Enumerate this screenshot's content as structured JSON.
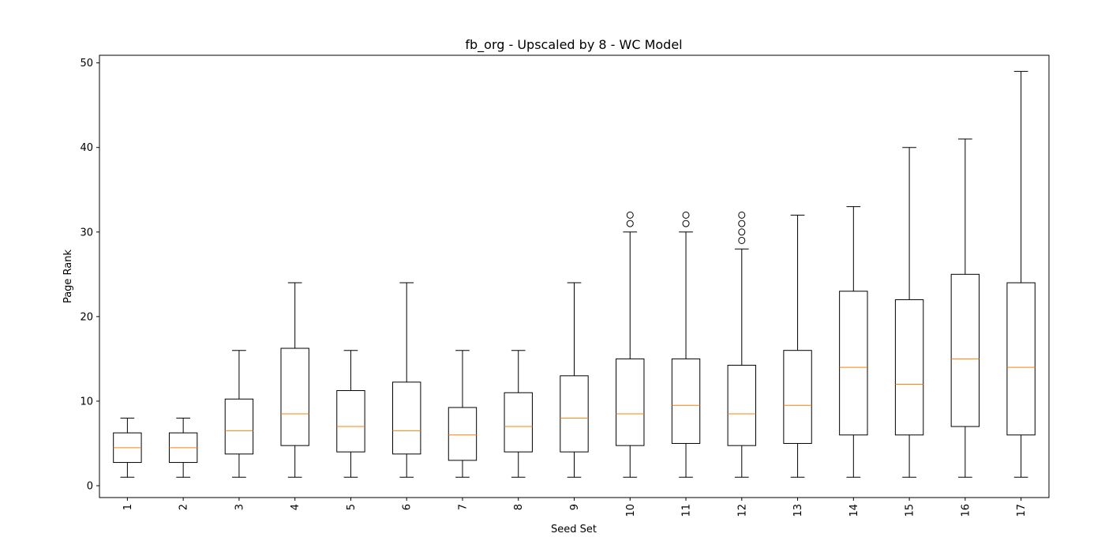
{
  "chart_data": {
    "type": "boxplot",
    "title": "fb_org - Upscaled by 8 - WC Model",
    "xlabel": "Seed Set",
    "ylabel": "Page Rank",
    "categories": [
      "1",
      "2",
      "3",
      "4",
      "5",
      "6",
      "7",
      "8",
      "9",
      "10",
      "11",
      "12",
      "13",
      "14",
      "15",
      "16",
      "17"
    ],
    "ylim": [
      -1.4,
      50.9
    ],
    "yticks": [
      0,
      10,
      20,
      30,
      40,
      50
    ],
    "grid": false,
    "colors": {
      "box": "#000000",
      "median": "#ff7f0e",
      "frame": "#000000"
    },
    "boxes": [
      {
        "label": "1",
        "whislo": 1,
        "q1": 2.75,
        "med": 4.5,
        "q3": 6.25,
        "whishi": 8,
        "fliers": []
      },
      {
        "label": "2",
        "whislo": 1,
        "q1": 2.75,
        "med": 4.5,
        "q3": 6.25,
        "whishi": 8,
        "fliers": []
      },
      {
        "label": "3",
        "whislo": 1,
        "q1": 3.75,
        "med": 6.5,
        "q3": 10.25,
        "whishi": 16,
        "fliers": []
      },
      {
        "label": "4",
        "whislo": 1,
        "q1": 4.75,
        "med": 8.5,
        "q3": 16.25,
        "whishi": 24,
        "fliers": []
      },
      {
        "label": "5",
        "whislo": 1,
        "q1": 4,
        "med": 7,
        "q3": 11.25,
        "whishi": 16,
        "fliers": []
      },
      {
        "label": "6",
        "whislo": 1,
        "q1": 3.75,
        "med": 6.5,
        "q3": 12.25,
        "whishi": 24,
        "fliers": []
      },
      {
        "label": "7",
        "whislo": 1,
        "q1": 3,
        "med": 6,
        "q3": 9.25,
        "whishi": 16,
        "fliers": []
      },
      {
        "label": "8",
        "whislo": 1,
        "q1": 4,
        "med": 7,
        "q3": 11,
        "whishi": 16,
        "fliers": []
      },
      {
        "label": "9",
        "whislo": 1,
        "q1": 4,
        "med": 8,
        "q3": 13,
        "whishi": 24,
        "fliers": []
      },
      {
        "label": "10",
        "whislo": 1,
        "q1": 4.75,
        "med": 8.5,
        "q3": 15,
        "whishi": 30,
        "fliers": [
          31,
          32
        ]
      },
      {
        "label": "11",
        "whislo": 1,
        "q1": 5,
        "med": 9.5,
        "q3": 15,
        "whishi": 30,
        "fliers": [
          31,
          32
        ]
      },
      {
        "label": "12",
        "whislo": 1,
        "q1": 4.75,
        "med": 8.5,
        "q3": 14.25,
        "whishi": 28,
        "fliers": [
          29,
          30,
          31,
          32
        ]
      },
      {
        "label": "13",
        "whislo": 1,
        "q1": 5,
        "med": 9.5,
        "q3": 16,
        "whishi": 32,
        "fliers": []
      },
      {
        "label": "14",
        "whislo": 1,
        "q1": 6,
        "med": 14,
        "q3": 23,
        "whishi": 33,
        "fliers": []
      },
      {
        "label": "15",
        "whislo": 1,
        "q1": 6,
        "med": 12,
        "q3": 22,
        "whishi": 40,
        "fliers": []
      },
      {
        "label": "16",
        "whislo": 1,
        "q1": 7,
        "med": 15,
        "q3": 25,
        "whishi": 41,
        "fliers": []
      },
      {
        "label": "17",
        "whislo": 1,
        "q1": 6,
        "med": 14,
        "q3": 24,
        "whishi": 49,
        "fliers": []
      }
    ]
  }
}
